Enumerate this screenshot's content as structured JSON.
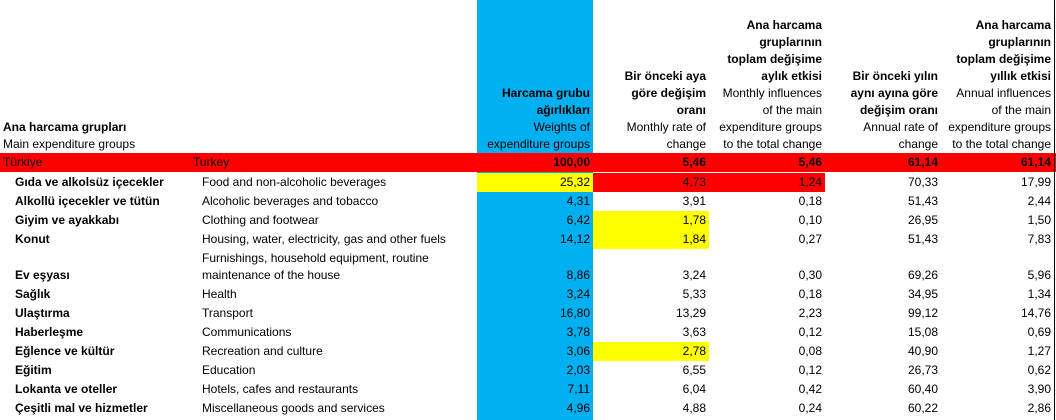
{
  "headers": {
    "group_tr": "Ana harcama grupları",
    "group_en": "Main expenditure groups",
    "weights_tr": [
      "Harcama grubu",
      "ağırlıkları"
    ],
    "weights_en": [
      "Weights of",
      "expenditure groups"
    ],
    "monthly_rate_tr": [
      "Bir önceki aya",
      "göre değişim",
      "oranı"
    ],
    "monthly_rate_en": [
      "Monthly rate of",
      "change"
    ],
    "monthly_infl_tr": [
      "Ana harcama",
      "gruplarının",
      "toplam değişime",
      "aylık etkisi"
    ],
    "monthly_infl_en": [
      "Monthly influences",
      "of the main",
      "expenditure groups",
      "to the total change"
    ],
    "annual_rate_tr": [
      "Bir önceki yılın",
      "aynı ayına göre",
      "değişim oranı"
    ],
    "annual_rate_en": [
      "Annual rate of",
      "change"
    ],
    "annual_infl_tr": [
      "Ana harcama",
      "gruplarının",
      "toplam değişime",
      "yıllık etkisi"
    ],
    "annual_infl_en": [
      "Annual influences",
      "of the main",
      "expenditure groups",
      "to the total change"
    ]
  },
  "total": {
    "tr": "Türkiye",
    "en": "Turkey",
    "weight": "100,00",
    "monthly_rate": "5,46",
    "monthly_infl": "5,46",
    "annual_rate": "61,14",
    "annual_infl": "61,14"
  },
  "rows": [
    {
      "tr": "Gıda ve alkolsüz içecekler",
      "en": "Food and non-alcoholic beverages",
      "weight": "25,32",
      "monthly_rate": "4,73",
      "monthly_infl": "1,24",
      "annual_rate": "70,33",
      "annual_infl": "17,99"
    },
    {
      "tr": "Alkollü içecekler ve tütün",
      "en": "Alcoholic beverages and tobacco",
      "weight": "4,31",
      "monthly_rate": "3,91",
      "monthly_infl": "0,18",
      "annual_rate": "51,43",
      "annual_infl": "2,44"
    },
    {
      "tr": "Giyim ve ayakkabı",
      "en": "Clothing and footwear",
      "weight": "6,42",
      "monthly_rate": "1,78",
      "monthly_infl": "0,10",
      "annual_rate": "26,95",
      "annual_infl": "1,50"
    },
    {
      "tr": "Konut",
      "en": "Housing, water, electricity, gas and other fuels",
      "weight": "14,12",
      "monthly_rate": "1,84",
      "monthly_infl": "0,27",
      "annual_rate": "51,43",
      "annual_infl": "7,83"
    },
    {
      "tr": "Ev eşyası",
      "en1": "Furnishings, household equipment, routine",
      "en": "maintenance of the house",
      "weight": "8,86",
      "monthly_rate": "3,24",
      "monthly_infl": "0,30",
      "annual_rate": "69,26",
      "annual_infl": "5,96"
    },
    {
      "tr": "Sağlık",
      "en": "Health",
      "weight": "3,24",
      "monthly_rate": "5,33",
      "monthly_infl": "0,18",
      "annual_rate": "34,95",
      "annual_infl": "1,34"
    },
    {
      "tr": "Ulaştırma",
      "en": "Transport",
      "weight": "16,80",
      "monthly_rate": "13,29",
      "monthly_infl": "2,23",
      "annual_rate": "99,12",
      "annual_infl": "14,76"
    },
    {
      "tr": "Haberleşme",
      "en": "Communications",
      "weight": "3,78",
      "monthly_rate": "3,63",
      "monthly_infl": "0,12",
      "annual_rate": "15,08",
      "annual_infl": "0,69"
    },
    {
      "tr": "Eğlence ve kültür",
      "en": "Recreation and culture",
      "weight": "3,06",
      "monthly_rate": "2,78",
      "monthly_infl": "0,08",
      "annual_rate": "40,90",
      "annual_infl": "1,27"
    },
    {
      "tr": "Eğitim",
      "en": "Education",
      "weight": "2,03",
      "monthly_rate": "6,55",
      "monthly_infl": "0,12",
      "annual_rate": "26,73",
      "annual_infl": "0,62"
    },
    {
      "tr": "Lokanta ve oteller",
      "en": "Hotels, cafes and restaurants",
      "weight": "7,11",
      "monthly_rate": "6,04",
      "monthly_infl": "0,42",
      "annual_rate": "60,40",
      "annual_infl": "3,90"
    },
    {
      "tr": "Çeşitli mal ve hizmetler",
      "en": "Miscellaneous goods and services",
      "weight": "4,96",
      "monthly_rate": "4,88",
      "monthly_infl": "0,24",
      "annual_rate": "60,22",
      "annual_infl": "2,86"
    }
  ],
  "colors": {
    "weight_column": "#00b0f0",
    "highlight_red": "#ff0000",
    "highlight_yellow": "#ffff00"
  }
}
